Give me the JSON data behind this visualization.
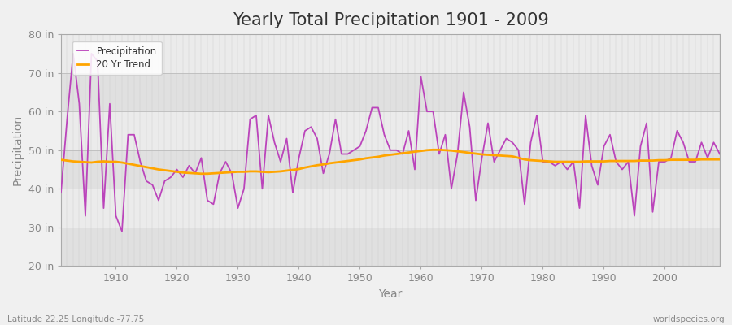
{
  "title": "Yearly Total Precipitation 1901 - 2009",
  "xlabel": "Year",
  "ylabel": "Precipitation",
  "subtitle_left": "Latitude 22.25 Longitude -77.75",
  "subtitle_right": "worldspecies.org",
  "legend_labels": [
    "Precipitation",
    "20 Yr Trend"
  ],
  "precip_color": "#BB44BB",
  "trend_color": "#FFA500",
  "bg_color": "#F0F0F0",
  "plot_bg_color": "#E8E8E8",
  "band_colors": [
    "#E0E0E0",
    "#EBEBEB"
  ],
  "ylim": [
    20,
    80
  ],
  "yticks": [
    20,
    30,
    40,
    50,
    60,
    70,
    80
  ],
  "ytick_labels": [
    "20 in",
    "30 in",
    "40 in",
    "50 in",
    "60 in",
    "70 in",
    "80 in"
  ],
  "xlim": [
    1901,
    2009
  ],
  "years": [
    1901,
    1902,
    1903,
    1904,
    1905,
    1906,
    1907,
    1908,
    1909,
    1910,
    1911,
    1912,
    1913,
    1914,
    1915,
    1916,
    1917,
    1918,
    1919,
    1920,
    1921,
    1922,
    1923,
    1924,
    1925,
    1926,
    1927,
    1928,
    1929,
    1930,
    1931,
    1932,
    1933,
    1934,
    1935,
    1936,
    1937,
    1938,
    1939,
    1940,
    1941,
    1942,
    1943,
    1944,
    1945,
    1946,
    1947,
    1948,
    1949,
    1950,
    1951,
    1952,
    1953,
    1954,
    1955,
    1956,
    1957,
    1958,
    1959,
    1960,
    1961,
    1962,
    1963,
    1964,
    1965,
    1966,
    1967,
    1968,
    1969,
    1970,
    1971,
    1972,
    1973,
    1974,
    1975,
    1976,
    1977,
    1978,
    1979,
    1980,
    1981,
    1982,
    1983,
    1984,
    1985,
    1986,
    1987,
    1988,
    1989,
    1990,
    1991,
    1992,
    1993,
    1994,
    1995,
    1996,
    1997,
    1998,
    1999,
    2000,
    2001,
    2002,
    2003,
    2004,
    2005,
    2006,
    2007,
    2008,
    2009
  ],
  "precip": [
    39,
    58,
    75,
    62,
    33,
    75,
    73,
    35,
    62,
    33,
    29,
    54,
    54,
    47,
    42,
    41,
    37,
    42,
    43,
    45,
    43,
    46,
    44,
    48,
    37,
    36,
    44,
    47,
    44,
    35,
    40,
    58,
    59,
    40,
    59,
    52,
    47,
    53,
    39,
    48,
    55,
    56,
    53,
    44,
    49,
    58,
    49,
    49,
    50,
    51,
    55,
    61,
    61,
    54,
    50,
    50,
    49,
    55,
    45,
    69,
    60,
    60,
    49,
    54,
    40,
    49,
    65,
    56,
    37,
    48,
    57,
    47,
    50,
    53,
    52,
    50,
    36,
    52,
    59,
    47,
    47,
    46,
    47,
    45,
    47,
    35,
    59,
    46,
    41,
    51,
    54,
    47,
    45,
    47,
    33,
    51,
    57,
    34,
    47,
    47,
    48,
    55,
    52,
    47,
    47,
    52,
    48,
    52,
    49
  ],
  "trend": [
    47.5,
    47.3,
    47.1,
    47.0,
    46.9,
    46.8,
    47.0,
    47.1,
    47.0,
    47.0,
    46.8,
    46.5,
    46.2,
    45.9,
    45.6,
    45.3,
    45.0,
    44.8,
    44.6,
    44.4,
    44.2,
    44.1,
    44.0,
    43.9,
    43.9,
    44.0,
    44.1,
    44.2,
    44.3,
    44.4,
    44.4,
    44.5,
    44.5,
    44.4,
    44.3,
    44.4,
    44.5,
    44.7,
    44.9,
    45.1,
    45.5,
    45.8,
    46.1,
    46.3,
    46.6,
    46.8,
    47.0,
    47.2,
    47.4,
    47.6,
    47.9,
    48.1,
    48.3,
    48.6,
    48.8,
    49.0,
    49.2,
    49.4,
    49.6,
    49.8,
    50.0,
    50.1,
    50.1,
    50.0,
    49.9,
    49.7,
    49.5,
    49.3,
    49.1,
    48.9,
    48.8,
    48.7,
    48.6,
    48.5,
    48.4,
    48.0,
    47.6,
    47.4,
    47.3,
    47.2,
    47.1,
    47.0,
    47.0,
    47.0,
    47.0,
    47.0,
    47.1,
    47.1,
    47.1,
    47.1,
    47.2,
    47.2,
    47.2,
    47.2,
    47.2,
    47.3,
    47.3,
    47.3,
    47.4,
    47.4,
    47.5,
    47.5,
    47.5,
    47.5,
    47.5,
    47.6,
    47.6,
    47.6,
    47.6
  ],
  "grid_color": "#FFFFFF",
  "title_fontsize": 15,
  "axis_fontsize": 10,
  "tick_fontsize": 9,
  "tick_color": "#888888",
  "spine_color": "#AAAAAA"
}
